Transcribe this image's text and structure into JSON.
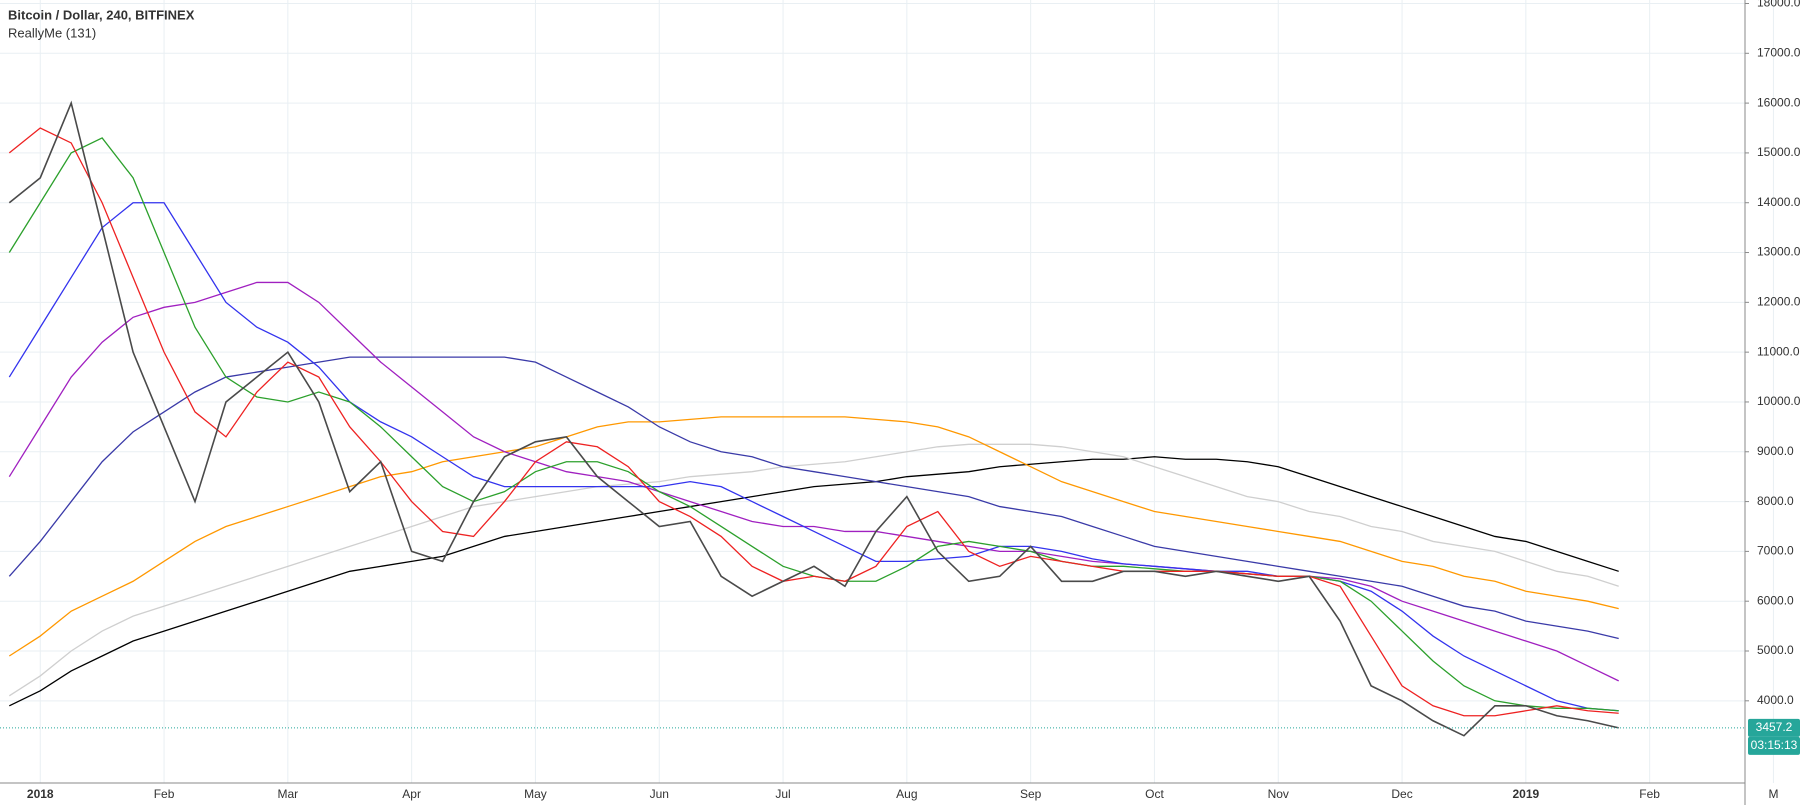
{
  "chart_data": {
    "type": "line",
    "title": "Bitcoin / Dollar, 240, BITFINEX",
    "subtitle": "ReallyMe (131)",
    "categories": [
      null,
      "2018",
      null,
      null,
      null,
      "Feb",
      null,
      null,
      null,
      "Mar",
      null,
      null,
      null,
      "Apr",
      null,
      null,
      null,
      "May",
      null,
      null,
      null,
      "Jun",
      null,
      null,
      null,
      "Jul",
      null,
      null,
      null,
      "Aug",
      null,
      null,
      null,
      "Sep",
      null,
      null,
      null,
      "Oct",
      null,
      null,
      null,
      "Nov",
      null,
      null,
      null,
      "Dec",
      null,
      null,
      null,
      "2019",
      null,
      null,
      null,
      "Feb",
      null,
      null,
      null,
      "M"
    ],
    "series": [
      {
        "color": "#000000",
        "values": [
          3900,
          4200,
          4600,
          4900,
          5200,
          5400,
          5600,
          5800,
          6000,
          6200,
          6400,
          6600,
          6700,
          6800,
          6900,
          7100,
          7300,
          7400,
          7500,
          7600,
          7700,
          7800,
          7900,
          8000,
          8100,
          8200,
          8300,
          8350,
          8400,
          8500,
          8550,
          8600,
          8700,
          8750,
          8800,
          8850,
          8850,
          8900,
          8850,
          8850,
          8800,
          8700,
          8500,
          8300,
          8100,
          7900,
          7700,
          7500,
          7300,
          7200,
          7000,
          6800,
          6600,
          null,
          null,
          null,
          null,
          null
        ]
      },
      {
        "color": "#cfcfcf",
        "values": [
          4100,
          4500,
          5000,
          5400,
          5700,
          5900,
          6100,
          6300,
          6500,
          6700,
          6900,
          7100,
          7300,
          7500,
          7700,
          7900,
          8000,
          8100,
          8200,
          8300,
          8350,
          8400,
          8500,
          8550,
          8600,
          8700,
          8750,
          8800,
          8900,
          9000,
          9100,
          9150,
          9150,
          9150,
          9100,
          9000,
          8900,
          8700,
          8500,
          8300,
          8100,
          8000,
          7800,
          7700,
          7500,
          7400,
          7200,
          7100,
          7000,
          6800,
          6600,
          6500,
          6300,
          null,
          null,
          null,
          null,
          null
        ]
      },
      {
        "color": "#ff9800",
        "values": [
          4900,
          5300,
          5800,
          6100,
          6400,
          6800,
          7200,
          7500,
          7700,
          7900,
          8100,
          8300,
          8500,
          8600,
          8800,
          8900,
          9000,
          9100,
          9300,
          9500,
          9600,
          9600,
          9650,
          9700,
          9700,
          9700,
          9700,
          9700,
          9650,
          9600,
          9500,
          9300,
          9000,
          8700,
          8400,
          8200,
          8000,
          7800,
          7700,
          7600,
          7500,
          7400,
          7300,
          7200,
          7000,
          6800,
          6700,
          6500,
          6400,
          6200,
          6100,
          6000,
          5850,
          null,
          null,
          null,
          null,
          null
        ]
      },
      {
        "color": "#3a3aa8",
        "values": [
          6500,
          7200,
          8000,
          8800,
          9400,
          9800,
          10200,
          10500,
          10600,
          10700,
          10800,
          10900,
          10900,
          10900,
          10900,
          10900,
          10900,
          10800,
          10500,
          10200,
          9900,
          9500,
          9200,
          9000,
          8900,
          8700,
          8600,
          8500,
          8400,
          8300,
          8200,
          8100,
          7900,
          7800,
          7700,
          7500,
          7300,
          7100,
          7000,
          6900,
          6800,
          6700,
          6600,
          6500,
          6400,
          6300,
          6100,
          5900,
          5800,
          5600,
          5500,
          5400,
          5250,
          null,
          null,
          null,
          null,
          null
        ]
      },
      {
        "color": "#a020c0",
        "values": [
          8500,
          9500,
          10500,
          11200,
          11700,
          11900,
          12000,
          12200,
          12400,
          12400,
          12000,
          11400,
          10800,
          10300,
          9800,
          9300,
          9000,
          8800,
          8600,
          8500,
          8400,
          8200,
          8000,
          7800,
          7600,
          7500,
          7500,
          7400,
          7400,
          7300,
          7200,
          7100,
          7000,
          7000,
          6900,
          6800,
          6750,
          6700,
          6650,
          6600,
          6550,
          6500,
          6500,
          6450,
          6300,
          6000,
          5800,
          5600,
          5400,
          5200,
          5000,
          4700,
          4400,
          null,
          null,
          null,
          null,
          null
        ]
      },
      {
        "color": "#3333ee",
        "values": [
          10500,
          11500,
          12500,
          13500,
          14000,
          14000,
          13000,
          12000,
          11500,
          11200,
          10700,
          10000,
          9600,
          9300,
          8900,
          8500,
          8300,
          8300,
          8300,
          8300,
          8300,
          8300,
          8400,
          8300,
          8000,
          7700,
          7400,
          7100,
          6800,
          6800,
          6850,
          6900,
          7100,
          7100,
          7000,
          6850,
          6750,
          6700,
          6650,
          6600,
          6600,
          6500,
          6500,
          6400,
          6200,
          5800,
          5300,
          4900,
          4600,
          4300,
          4000,
          3850,
          3800,
          null,
          null,
          null,
          null,
          null
        ]
      },
      {
        "color": "#2ca02c",
        "values": [
          13000,
          14000,
          15000,
          15300,
          14500,
          13000,
          11500,
          10500,
          10100,
          10000,
          10200,
          10000,
          9500,
          8900,
          8300,
          8000,
          8200,
          8600,
          8800,
          8800,
          8600,
          8200,
          7900,
          7500,
          7100,
          6700,
          6500,
          6400,
          6400,
          6700,
          7100,
          7200,
          7100,
          7000,
          6800,
          6700,
          6700,
          6650,
          6600,
          6600,
          6550,
          6500,
          6500,
          6400,
          6000,
          5400,
          4800,
          4300,
          4000,
          3900,
          3850,
          3850,
          3800,
          null,
          null,
          null,
          null,
          null
        ]
      },
      {
        "color": "#ee2222",
        "values": [
          15000,
          15500,
          15200,
          14000,
          12500,
          11000,
          9800,
          9300,
          10200,
          10800,
          10500,
          9500,
          8800,
          8000,
          7400,
          7300,
          8000,
          8800,
          9200,
          9100,
          8700,
          8000,
          7700,
          7300,
          6700,
          6400,
          6500,
          6400,
          6700,
          7500,
          7800,
          7000,
          6700,
          6900,
          6800,
          6700,
          6600,
          6600,
          6600,
          6600,
          6550,
          6500,
          6500,
          6300,
          5300,
          4300,
          3900,
          3700,
          3700,
          3800,
          3900,
          3800,
          3750,
          null,
          null,
          null,
          null,
          null
        ]
      },
      {
        "color": "#4a4a4a",
        "values": [
          14000,
          14500,
          16000,
          13500,
          11000,
          9500,
          8000,
          10000,
          10500,
          11000,
          10000,
          8200,
          8800,
          7000,
          6800,
          8000,
          8900,
          9200,
          9300,
          8500,
          8000,
          7500,
          7600,
          6500,
          6100,
          6400,
          6700,
          6300,
          7400,
          8100,
          7000,
          6400,
          6500,
          7100,
          6400,
          6400,
          6600,
          6600,
          6500,
          6600,
          6500,
          6400,
          6500,
          5600,
          4300,
          4000,
          3600,
          3300,
          3900,
          3900,
          3700,
          3600,
          3457.2,
          null,
          null,
          null,
          null,
          null
        ]
      }
    ],
    "ylim": [
      2350,
      18070
    ],
    "yticks": [
      {
        "value": 4000,
        "label": "4000.0"
      },
      {
        "value": 5000,
        "label": "5000.0"
      },
      {
        "value": 6000,
        "label": "6000.0"
      },
      {
        "value": 7000,
        "label": "7000.0"
      },
      {
        "value": 8000,
        "label": "8000.0"
      },
      {
        "value": 9000,
        "label": "9000.0"
      },
      {
        "value": 10000,
        "label": "10000.0"
      },
      {
        "value": 11000,
        "label": "11000.0"
      },
      {
        "value": 12000,
        "label": "12000.0"
      },
      {
        "value": 13000,
        "label": "13000.0"
      },
      {
        "value": 14000,
        "label": "14000.0"
      },
      {
        "value": 15000,
        "label": "15000.0"
      },
      {
        "value": 16000,
        "label": "16000.0"
      },
      {
        "value": 17000,
        "label": "17000.0"
      },
      {
        "value": 18000,
        "label": "18000.0"
      }
    ],
    "last_price": 3457.2,
    "last_price_color": "#26a69a",
    "countdown": "03:15:13",
    "grid": true
  }
}
